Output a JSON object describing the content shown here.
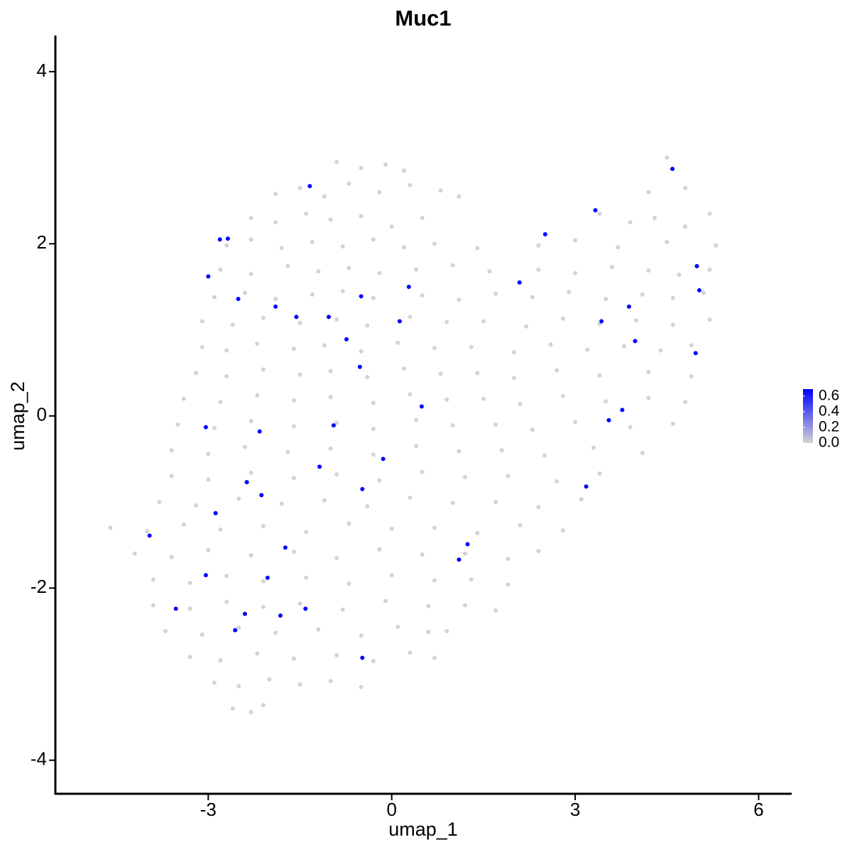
{
  "chart_data": {
    "type": "scatter",
    "title": "Muc1",
    "x_label": "umap_1",
    "y_label": "umap_2",
    "xlim": [
      -5.5,
      6.54
    ],
    "ylim": [
      -4.39,
      4.42
    ],
    "xticks": [
      -3,
      0,
      3,
      6
    ],
    "yticks": [
      -4,
      -2,
      0,
      2,
      4
    ],
    "grid": false,
    "colorbar": {
      "lim": [
        0,
        0.69
      ],
      "colors": [
        "#d3d3d3",
        "#0000ff"
      ],
      "ticks": [
        {
          "value": 0,
          "label": "0.0"
        },
        0.2,
        0.4,
        0.6
      ]
    },
    "series": [
      {
        "color": "#d3d3d3",
        "x": [
          -0.9,
          -0.5,
          -0.1,
          0.2,
          4.5,
          -1.9,
          -1.5,
          -1.1,
          -0.7,
          -0.2,
          0.3,
          0.8,
          1.1,
          4.2,
          4.8,
          -2.3,
          -1.9,
          -1.4,
          -1.0,
          -0.5,
          0.0,
          0.5,
          3.4,
          3.9,
          4.3,
          4.8,
          5.2,
          -2.7,
          -2.3,
          -1.8,
          -1.3,
          -0.8,
          -0.3,
          0.2,
          0.7,
          1.4,
          2.4,
          3.0,
          3.7,
          4.5,
          5.3,
          -2.8,
          -2.3,
          -1.7,
          -1.2,
          -0.7,
          -0.2,
          0.4,
          1.0,
          1.6,
          2.4,
          3.0,
          3.6,
          4.2,
          4.7,
          5.2,
          -2.9,
          -2.4,
          -1.9,
          -1.3,
          -0.8,
          -0.3,
          0.5,
          1.1,
          1.7,
          2.3,
          2.9,
          3.5,
          4.1,
          4.6,
          5.1,
          -3.1,
          -2.6,
          -2.1,
          -1.5,
          -0.9,
          -0.4,
          0.3,
          0.9,
          1.5,
          2.2,
          2.8,
          3.4,
          4.0,
          4.6,
          5.2,
          -3.1,
          -2.7,
          -2.2,
          -1.6,
          -1.1,
          -0.5,
          0.1,
          0.7,
          1.3,
          2.0,
          2.6,
          3.2,
          3.8,
          4.4,
          4.9,
          -3.2,
          -2.7,
          -2.1,
          -1.5,
          -1.0,
          -0.4,
          0.2,
          0.8,
          1.4,
          2.0,
          2.7,
          3.4,
          4.2,
          4.9,
          -3.4,
          -2.8,
          -2.2,
          -1.6,
          -1.0,
          -0.3,
          0.3,
          0.9,
          1.5,
          2.1,
          2.8,
          3.5,
          4.2,
          4.8,
          -3.5,
          -2.9,
          -2.3,
          -1.6,
          -0.9,
          -0.3,
          0.4,
          1.0,
          1.7,
          2.3,
          3.0,
          3.9,
          4.6,
          -3.6,
          -3.0,
          -2.4,
          -1.7,
          -1.0,
          -0.3,
          0.4,
          1.1,
          1.8,
          2.5,
          3.3,
          4.1,
          -3.6,
          -3.0,
          -2.3,
          -1.6,
          -0.9,
          -0.2,
          0.5,
          1.2,
          1.9,
          2.7,
          3.4,
          -3.8,
          -3.2,
          -2.5,
          -1.8,
          -1.1,
          -0.4,
          0.3,
          1.0,
          1.7,
          2.4,
          3.1,
          -4.6,
          -4.0,
          -3.4,
          -2.8,
          -2.1,
          -1.4,
          -0.7,
          0.0,
          0.7,
          1.4,
          2.1,
          2.8,
          -4.2,
          -3.6,
          -3.0,
          -2.3,
          -1.6,
          -0.9,
          -0.2,
          0.5,
          1.2,
          1.9,
          2.4,
          -3.9,
          -3.3,
          -2.7,
          -2.1,
          -1.4,
          -0.7,
          0.0,
          0.7,
          1.3,
          1.9,
          -3.9,
          -3.3,
          -2.7,
          -2.1,
          -1.5,
          -0.8,
          -0.1,
          0.6,
          1.2,
          1.7,
          -3.7,
          -3.1,
          -2.5,
          -1.9,
          -1.2,
          -0.5,
          0.1,
          0.6,
          0.9,
          -3.3,
          -2.8,
          -2.2,
          -1.6,
          -0.9,
          -0.3,
          0.3,
          0.7,
          -2.9,
          -2.5,
          -2.0,
          -1.5,
          -1.0,
          -0.5,
          -2.6,
          -2.3,
          -2.1
        ],
        "y": [
          2.95,
          2.88,
          2.92,
          2.85,
          3.0,
          2.58,
          2.65,
          2.55,
          2.7,
          2.6,
          2.68,
          2.62,
          2.55,
          2.6,
          2.65,
          2.3,
          2.25,
          2.35,
          2.28,
          2.32,
          2.2,
          2.3,
          2.35,
          2.25,
          2.3,
          2.2,
          2.35,
          1.98,
          2.05,
          1.95,
          2.02,
          1.97,
          2.05,
          1.96,
          2.0,
          1.95,
          1.98,
          2.04,
          1.96,
          2.02,
          1.98,
          1.7,
          1.65,
          1.74,
          1.68,
          1.72,
          1.66,
          1.7,
          1.75,
          1.68,
          1.7,
          1.66,
          1.73,
          1.69,
          1.64,
          1.7,
          1.38,
          1.43,
          1.36,
          1.41,
          1.45,
          1.37,
          1.4,
          1.35,
          1.42,
          1.38,
          1.44,
          1.36,
          1.41,
          1.37,
          1.43,
          1.1,
          1.06,
          1.14,
          1.08,
          1.12,
          1.05,
          1.15,
          1.09,
          1.1,
          1.04,
          1.13,
          1.07,
          1.11,
          1.06,
          1.12,
          0.8,
          0.76,
          0.84,
          0.78,
          0.82,
          0.75,
          0.85,
          0.79,
          0.8,
          0.74,
          0.83,
          0.77,
          0.81,
          0.76,
          0.82,
          0.5,
          0.46,
          0.54,
          0.48,
          0.52,
          0.45,
          0.55,
          0.49,
          0.5,
          0.44,
          0.53,
          0.47,
          0.51,
          0.46,
          0.2,
          0.16,
          0.24,
          0.18,
          0.22,
          0.15,
          0.25,
          0.19,
          0.2,
          0.14,
          0.23,
          0.17,
          0.21,
          0.16,
          -0.1,
          -0.14,
          -0.06,
          -0.12,
          -0.08,
          -0.15,
          -0.05,
          -0.11,
          -0.1,
          -0.16,
          -0.07,
          -0.13,
          -0.09,
          -0.4,
          -0.44,
          -0.36,
          -0.42,
          -0.38,
          -0.45,
          -0.35,
          -0.41,
          -0.4,
          -0.46,
          -0.37,
          -0.43,
          -0.7,
          -0.74,
          -0.66,
          -0.72,
          -0.68,
          -0.75,
          -0.65,
          -0.71,
          -0.7,
          -0.76,
          -0.67,
          -1.0,
          -1.04,
          -0.96,
          -1.02,
          -0.98,
          -1.05,
          -0.95,
          -1.01,
          -1.0,
          -1.06,
          -0.97,
          -1.3,
          -1.34,
          -1.26,
          -1.32,
          -1.28,
          -1.35,
          -1.25,
          -1.31,
          -1.3,
          -1.36,
          -1.27,
          -1.33,
          -1.6,
          -1.64,
          -1.56,
          -1.62,
          -1.58,
          -1.65,
          -1.55,
          -1.61,
          -1.6,
          -1.66,
          -1.57,
          -1.9,
          -1.94,
          -1.86,
          -1.92,
          -1.88,
          -1.95,
          -1.85,
          -1.91,
          -1.9,
          -1.96,
          -2.2,
          -2.24,
          -2.16,
          -2.22,
          -2.18,
          -2.25,
          -2.15,
          -2.21,
          -2.2,
          -2.26,
          -2.5,
          -2.54,
          -2.46,
          -2.52,
          -2.48,
          -2.55,
          -2.45,
          -2.51,
          -2.5,
          -2.8,
          -2.84,
          -2.76,
          -2.82,
          -2.78,
          -2.85,
          -2.75,
          -2.81,
          -3.1,
          -3.14,
          -3.06,
          -3.12,
          -3.08,
          -3.15,
          -3.4,
          -3.44,
          -3.36
        ]
      },
      {
        "color": "#0000ff",
        "x": [
          -1.34,
          -2.81,
          -2.68,
          -3.0,
          -2.51,
          -1.9,
          -1.56,
          -1.03,
          -0.5,
          0.28,
          0.13,
          -0.74,
          -0.52,
          0.49,
          -0.95,
          -3.04,
          -2.16,
          -0.14,
          -1.18,
          -2.37,
          -0.48,
          -2.13,
          -2.88,
          -3.96,
          -1.74,
          1.24,
          1.1,
          -3.04,
          -2.03,
          -1.41,
          -3.53,
          -2.4,
          -1.82,
          -2.56,
          -0.48,
          4.59,
          3.33,
          2.51,
          2.09,
          4.99,
          5.03,
          3.88,
          3.43,
          3.98,
          4.97,
          3.77,
          3.55,
          3.18
        ],
        "y": [
          2.67,
          2.05,
          2.06,
          1.62,
          1.36,
          1.27,
          1.15,
          1.15,
          1.39,
          1.5,
          1.1,
          0.89,
          0.57,
          0.11,
          -0.11,
          -0.13,
          -0.18,
          -0.5,
          -0.59,
          -0.77,
          -0.85,
          -0.92,
          -1.13,
          -1.39,
          -1.53,
          -1.49,
          -1.67,
          -1.85,
          -1.88,
          -2.24,
          -2.24,
          -2.3,
          -2.32,
          -2.49,
          -2.81,
          2.87,
          2.39,
          2.11,
          1.55,
          1.74,
          1.46,
          1.27,
          1.1,
          0.87,
          0.73,
          0.07,
          -0.05,
          -0.82
        ]
      }
    ]
  }
}
